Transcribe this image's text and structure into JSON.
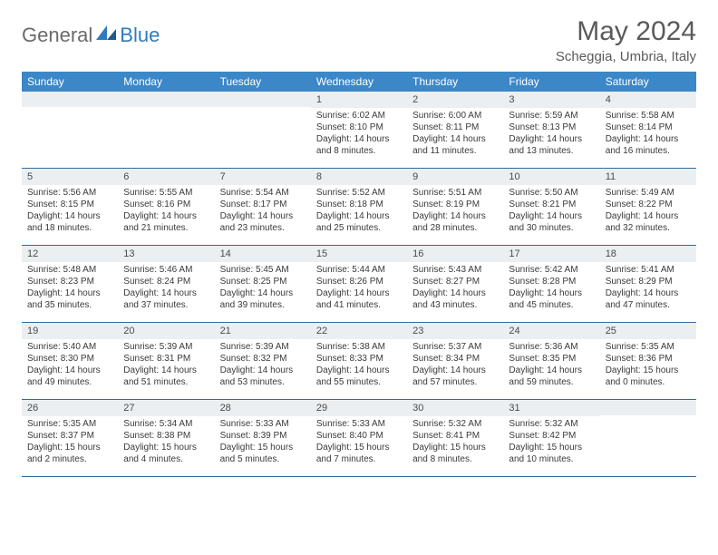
{
  "logo": {
    "general": "General",
    "blue": "Blue"
  },
  "title": {
    "month": "May 2024",
    "location": "Scheggia, Umbria, Italy"
  },
  "colors": {
    "header_bg": "#3b87c8",
    "daynum_bg": "#eceff1",
    "row_border": "#2f6aa0",
    "text_main": "#3a3a3a",
    "text_muted": "#5a5a5a",
    "logo_gray": "#6b6b6b",
    "logo_blue": "#2f7bbf"
  },
  "weekdays": [
    "Sunday",
    "Monday",
    "Tuesday",
    "Wednesday",
    "Thursday",
    "Friday",
    "Saturday"
  ],
  "weeks": [
    [
      {
        "empty": true
      },
      {
        "empty": true
      },
      {
        "empty": true
      },
      {
        "num": "1",
        "sunrise": "Sunrise: 6:02 AM",
        "sunset": "Sunset: 8:10 PM",
        "dl1": "Daylight: 14 hours",
        "dl2": "and 8 minutes."
      },
      {
        "num": "2",
        "sunrise": "Sunrise: 6:00 AM",
        "sunset": "Sunset: 8:11 PM",
        "dl1": "Daylight: 14 hours",
        "dl2": "and 11 minutes."
      },
      {
        "num": "3",
        "sunrise": "Sunrise: 5:59 AM",
        "sunset": "Sunset: 8:13 PM",
        "dl1": "Daylight: 14 hours",
        "dl2": "and 13 minutes."
      },
      {
        "num": "4",
        "sunrise": "Sunrise: 5:58 AM",
        "sunset": "Sunset: 8:14 PM",
        "dl1": "Daylight: 14 hours",
        "dl2": "and 16 minutes."
      }
    ],
    [
      {
        "num": "5",
        "sunrise": "Sunrise: 5:56 AM",
        "sunset": "Sunset: 8:15 PM",
        "dl1": "Daylight: 14 hours",
        "dl2": "and 18 minutes."
      },
      {
        "num": "6",
        "sunrise": "Sunrise: 5:55 AM",
        "sunset": "Sunset: 8:16 PM",
        "dl1": "Daylight: 14 hours",
        "dl2": "and 21 minutes."
      },
      {
        "num": "7",
        "sunrise": "Sunrise: 5:54 AM",
        "sunset": "Sunset: 8:17 PM",
        "dl1": "Daylight: 14 hours",
        "dl2": "and 23 minutes."
      },
      {
        "num": "8",
        "sunrise": "Sunrise: 5:52 AM",
        "sunset": "Sunset: 8:18 PM",
        "dl1": "Daylight: 14 hours",
        "dl2": "and 25 minutes."
      },
      {
        "num": "9",
        "sunrise": "Sunrise: 5:51 AM",
        "sunset": "Sunset: 8:19 PM",
        "dl1": "Daylight: 14 hours",
        "dl2": "and 28 minutes."
      },
      {
        "num": "10",
        "sunrise": "Sunrise: 5:50 AM",
        "sunset": "Sunset: 8:21 PM",
        "dl1": "Daylight: 14 hours",
        "dl2": "and 30 minutes."
      },
      {
        "num": "11",
        "sunrise": "Sunrise: 5:49 AM",
        "sunset": "Sunset: 8:22 PM",
        "dl1": "Daylight: 14 hours",
        "dl2": "and 32 minutes."
      }
    ],
    [
      {
        "num": "12",
        "sunrise": "Sunrise: 5:48 AM",
        "sunset": "Sunset: 8:23 PM",
        "dl1": "Daylight: 14 hours",
        "dl2": "and 35 minutes."
      },
      {
        "num": "13",
        "sunrise": "Sunrise: 5:46 AM",
        "sunset": "Sunset: 8:24 PM",
        "dl1": "Daylight: 14 hours",
        "dl2": "and 37 minutes."
      },
      {
        "num": "14",
        "sunrise": "Sunrise: 5:45 AM",
        "sunset": "Sunset: 8:25 PM",
        "dl1": "Daylight: 14 hours",
        "dl2": "and 39 minutes."
      },
      {
        "num": "15",
        "sunrise": "Sunrise: 5:44 AM",
        "sunset": "Sunset: 8:26 PM",
        "dl1": "Daylight: 14 hours",
        "dl2": "and 41 minutes."
      },
      {
        "num": "16",
        "sunrise": "Sunrise: 5:43 AM",
        "sunset": "Sunset: 8:27 PM",
        "dl1": "Daylight: 14 hours",
        "dl2": "and 43 minutes."
      },
      {
        "num": "17",
        "sunrise": "Sunrise: 5:42 AM",
        "sunset": "Sunset: 8:28 PM",
        "dl1": "Daylight: 14 hours",
        "dl2": "and 45 minutes."
      },
      {
        "num": "18",
        "sunrise": "Sunrise: 5:41 AM",
        "sunset": "Sunset: 8:29 PM",
        "dl1": "Daylight: 14 hours",
        "dl2": "and 47 minutes."
      }
    ],
    [
      {
        "num": "19",
        "sunrise": "Sunrise: 5:40 AM",
        "sunset": "Sunset: 8:30 PM",
        "dl1": "Daylight: 14 hours",
        "dl2": "and 49 minutes."
      },
      {
        "num": "20",
        "sunrise": "Sunrise: 5:39 AM",
        "sunset": "Sunset: 8:31 PM",
        "dl1": "Daylight: 14 hours",
        "dl2": "and 51 minutes."
      },
      {
        "num": "21",
        "sunrise": "Sunrise: 5:39 AM",
        "sunset": "Sunset: 8:32 PM",
        "dl1": "Daylight: 14 hours",
        "dl2": "and 53 minutes."
      },
      {
        "num": "22",
        "sunrise": "Sunrise: 5:38 AM",
        "sunset": "Sunset: 8:33 PM",
        "dl1": "Daylight: 14 hours",
        "dl2": "and 55 minutes."
      },
      {
        "num": "23",
        "sunrise": "Sunrise: 5:37 AM",
        "sunset": "Sunset: 8:34 PM",
        "dl1": "Daylight: 14 hours",
        "dl2": "and 57 minutes."
      },
      {
        "num": "24",
        "sunrise": "Sunrise: 5:36 AM",
        "sunset": "Sunset: 8:35 PM",
        "dl1": "Daylight: 14 hours",
        "dl2": "and 59 minutes."
      },
      {
        "num": "25",
        "sunrise": "Sunrise: 5:35 AM",
        "sunset": "Sunset: 8:36 PM",
        "dl1": "Daylight: 15 hours",
        "dl2": "and 0 minutes."
      }
    ],
    [
      {
        "num": "26",
        "sunrise": "Sunrise: 5:35 AM",
        "sunset": "Sunset: 8:37 PM",
        "dl1": "Daylight: 15 hours",
        "dl2": "and 2 minutes."
      },
      {
        "num": "27",
        "sunrise": "Sunrise: 5:34 AM",
        "sunset": "Sunset: 8:38 PM",
        "dl1": "Daylight: 15 hours",
        "dl2": "and 4 minutes."
      },
      {
        "num": "28",
        "sunrise": "Sunrise: 5:33 AM",
        "sunset": "Sunset: 8:39 PM",
        "dl1": "Daylight: 15 hours",
        "dl2": "and 5 minutes."
      },
      {
        "num": "29",
        "sunrise": "Sunrise: 5:33 AM",
        "sunset": "Sunset: 8:40 PM",
        "dl1": "Daylight: 15 hours",
        "dl2": "and 7 minutes."
      },
      {
        "num": "30",
        "sunrise": "Sunrise: 5:32 AM",
        "sunset": "Sunset: 8:41 PM",
        "dl1": "Daylight: 15 hours",
        "dl2": "and 8 minutes."
      },
      {
        "num": "31",
        "sunrise": "Sunrise: 5:32 AM",
        "sunset": "Sunset: 8:42 PM",
        "dl1": "Daylight: 15 hours",
        "dl2": "and 10 minutes."
      },
      {
        "empty": true
      }
    ]
  ]
}
